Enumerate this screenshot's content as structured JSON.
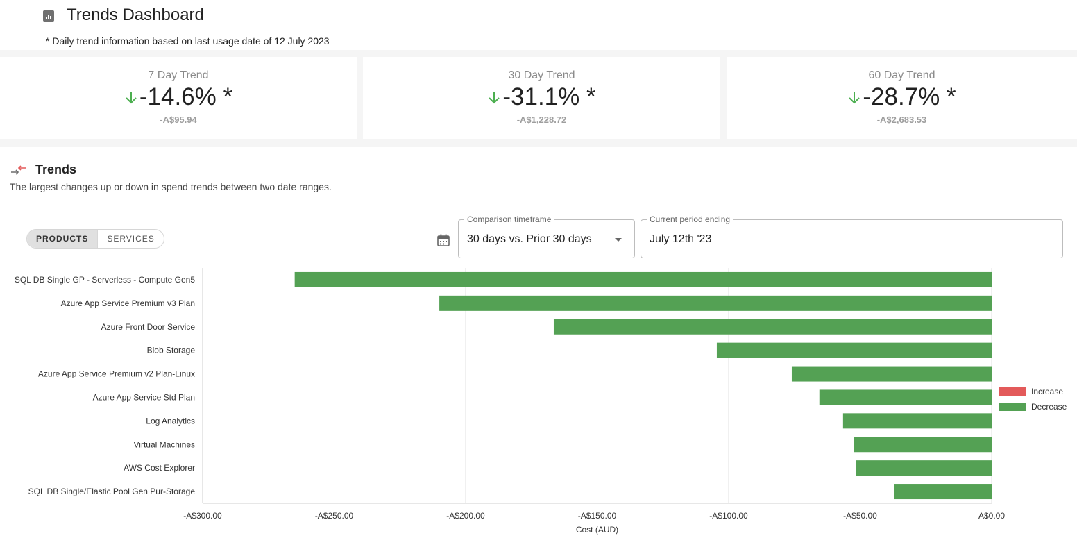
{
  "header": {
    "title": "Trends Dashboard",
    "subtitle": "* Daily trend information based on last usage date of 12 July 2023"
  },
  "kpis": [
    {
      "label": "7 Day Trend",
      "value": "-14.6% *",
      "amount": "-A$95.94",
      "direction": "down",
      "color": "#4caf50"
    },
    {
      "label": "30 Day Trend",
      "value": "-31.1% *",
      "amount": "-A$1,228.72",
      "direction": "down",
      "color": "#4caf50"
    },
    {
      "label": "60 Day Trend",
      "value": "-28.7% *",
      "amount": "-A$2,683.53",
      "direction": "down",
      "color": "#4caf50"
    }
  ],
  "trends": {
    "title": "Trends",
    "description": "The largest changes up or down in spend trends between two date ranges.",
    "toggle": {
      "products": "PRODUCTS",
      "services": "SERVICES",
      "active": "products"
    },
    "comparison": {
      "label": "Comparison timeframe",
      "value": "30 days vs. Prior 30 days"
    },
    "period": {
      "label": "Current period ending",
      "value": "July 12th '23"
    }
  },
  "chart_data": {
    "type": "bar",
    "orientation": "horizontal",
    "categories": [
      "SQL DB Single GP - Serverless - Compute Gen5",
      "Azure App Service Premium v3 Plan",
      "Azure Front Door Service",
      "Blob Storage",
      "Azure App Service Premium v2 Plan-Linux",
      "Azure App Service Std Plan",
      "Log Analytics",
      "Virtual Machines",
      "AWS Cost Explorer",
      "SQL DB Single/Elastic Pool Gen Pur-Storage"
    ],
    "values": [
      -265,
      -210,
      -166.5,
      -104.5,
      -76,
      -65.5,
      -56.5,
      -52.5,
      -51.5,
      -37
    ],
    "xlim": [
      -300,
      0
    ],
    "xticks": [
      -300,
      -250,
      -200,
      -150,
      -100,
      -50,
      0
    ],
    "xtick_labels": [
      "-A$300.00",
      "-A$250.00",
      "-A$200.00",
      "-A$150.00",
      "-A$100.00",
      "-A$50.00",
      "A$0.00"
    ],
    "xlabel": "Cost (AUD)",
    "grid": true,
    "legend": {
      "position": "right",
      "items": [
        {
          "name": "Increase",
          "color": "#e35a5a"
        },
        {
          "name": "Decrease",
          "color": "#54a154"
        }
      ]
    },
    "bar_color": "#54a154"
  }
}
